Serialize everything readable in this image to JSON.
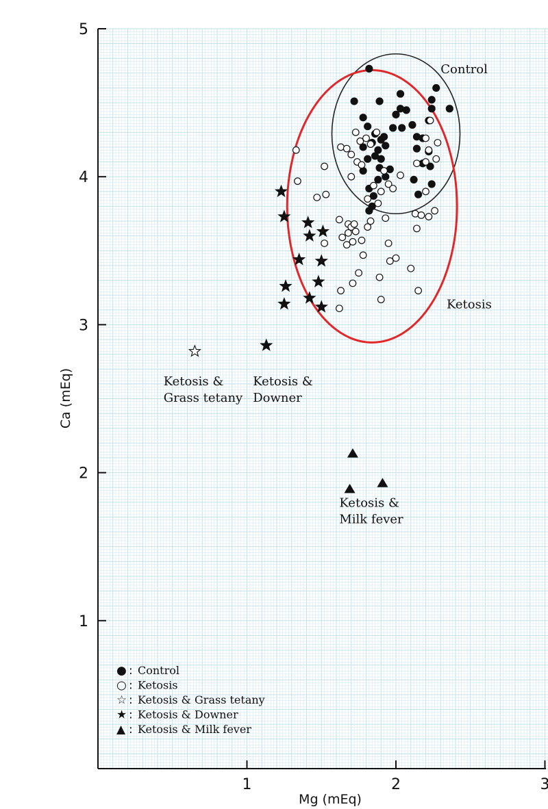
{
  "chart_data": {
    "type": "scatter",
    "title": "",
    "xlabel": "Mg (mEq)",
    "ylabel": "Ca (mEq)",
    "xlim": [
      0,
      3
    ],
    "ylim": [
      0,
      5
    ],
    "x_ticks": [
      1,
      2,
      3
    ],
    "y_ticks": [
      1,
      2,
      3,
      4,
      5
    ],
    "grid": true,
    "legend_position": "bottom-left",
    "series": [
      {
        "name": "Control",
        "marker": "filled-circle",
        "points": [
          [
            1.82,
            4.73
          ],
          [
            2.03,
            4.56
          ],
          [
            2.27,
            4.6
          ],
          [
            2.24,
            4.52
          ],
          [
            1.72,
            4.51
          ],
          [
            1.89,
            4.51
          ],
          [
            2.03,
            4.46
          ],
          [
            2.07,
            4.45
          ],
          [
            2.24,
            4.46
          ],
          [
            2.36,
            4.46
          ],
          [
            1.78,
            4.4
          ],
          [
            2.0,
            4.42
          ],
          [
            2.11,
            4.35
          ],
          [
            2.22,
            4.38
          ],
          [
            1.81,
            4.34
          ],
          [
            1.98,
            4.33
          ],
          [
            2.04,
            4.33
          ],
          [
            1.86,
            4.29
          ],
          [
            1.9,
            4.25
          ],
          [
            1.92,
            4.27
          ],
          [
            2.14,
            4.27
          ],
          [
            2.18,
            4.26
          ],
          [
            1.78,
            4.2
          ],
          [
            1.84,
            4.23
          ],
          [
            1.88,
            4.18
          ],
          [
            1.93,
            4.21
          ],
          [
            2.14,
            4.19
          ],
          [
            2.22,
            4.17
          ],
          [
            1.81,
            4.12
          ],
          [
            1.86,
            4.14
          ],
          [
            1.9,
            4.12
          ],
          [
            2.18,
            4.09
          ],
          [
            1.78,
            4.04
          ],
          [
            1.89,
            4.06
          ],
          [
            1.96,
            4.05
          ],
          [
            2.23,
            4.07
          ],
          [
            1.88,
            3.98
          ],
          [
            1.93,
            4.0
          ],
          [
            2.12,
            3.98
          ],
          [
            2.24,
            3.95
          ],
          [
            1.82,
            3.92
          ],
          [
            1.85,
            3.87
          ],
          [
            2.15,
            3.88
          ],
          [
            1.84,
            3.8
          ],
          [
            1.82,
            3.77
          ]
        ]
      },
      {
        "name": "Ketosis",
        "marker": "open-circle",
        "points": [
          [
            1.33,
            4.18
          ],
          [
            1.34,
            3.97
          ],
          [
            1.52,
            4.07
          ],
          [
            1.47,
            3.86
          ],
          [
            1.53,
            3.88
          ],
          [
            1.63,
            4.2
          ],
          [
            1.73,
            4.3
          ],
          [
            1.67,
            4.19
          ],
          [
            1.7,
            4.15
          ],
          [
            1.74,
            4.1
          ],
          [
            1.77,
            4.08
          ],
          [
            1.7,
            4.0
          ],
          [
            1.76,
            4.24
          ],
          [
            1.8,
            4.26
          ],
          [
            1.83,
            4.22
          ],
          [
            1.87,
            4.3
          ],
          [
            1.92,
            4.04
          ],
          [
            1.95,
            3.95
          ],
          [
            1.98,
            3.92
          ],
          [
            2.03,
            4.01
          ],
          [
            1.85,
            3.94
          ],
          [
            1.9,
            3.9
          ],
          [
            1.81,
            3.85
          ],
          [
            1.88,
            3.82
          ],
          [
            2.2,
            4.26
          ],
          [
            2.23,
            4.38
          ],
          [
            2.27,
            4.12
          ],
          [
            2.28,
            4.23
          ],
          [
            2.22,
            4.18
          ],
          [
            2.2,
            4.1
          ],
          [
            2.14,
            4.09
          ],
          [
            2.2,
            3.9
          ],
          [
            2.13,
            3.75
          ],
          [
            2.17,
            3.74
          ],
          [
            2.22,
            3.73
          ],
          [
            2.26,
            3.77
          ],
          [
            2.14,
            3.65
          ],
          [
            1.83,
            3.7
          ],
          [
            1.81,
            3.66
          ],
          [
            1.93,
            3.72
          ],
          [
            1.62,
            3.71
          ],
          [
            1.68,
            3.68
          ],
          [
            1.7,
            3.66
          ],
          [
            1.72,
            3.68
          ],
          [
            1.73,
            3.63
          ],
          [
            1.64,
            3.59
          ],
          [
            1.68,
            3.62
          ],
          [
            1.71,
            3.56
          ],
          [
            1.67,
            3.54
          ],
          [
            1.77,
            3.57
          ],
          [
            1.52,
            3.55
          ],
          [
            1.78,
            3.47
          ],
          [
            1.95,
            3.55
          ],
          [
            2.0,
            3.45
          ],
          [
            1.96,
            3.43
          ],
          [
            2.1,
            3.38
          ],
          [
            1.75,
            3.35
          ],
          [
            1.89,
            3.32
          ],
          [
            1.71,
            3.28
          ],
          [
            1.63,
            3.23
          ],
          [
            1.9,
            3.17
          ],
          [
            2.15,
            3.23
          ],
          [
            1.62,
            3.11
          ]
        ]
      },
      {
        "name": "Ketosis & Grass tetany",
        "marker": "open-star",
        "points": [
          [
            0.65,
            2.82
          ]
        ]
      },
      {
        "name": "Ketosis & Downer",
        "marker": "filled-star",
        "points": [
          [
            1.23,
            3.9
          ],
          [
            1.25,
            3.73
          ],
          [
            1.41,
            3.69
          ],
          [
            1.51,
            3.63
          ],
          [
            1.42,
            3.6
          ],
          [
            1.35,
            3.44
          ],
          [
            1.5,
            3.43
          ],
          [
            1.26,
            3.26
          ],
          [
            1.48,
            3.29
          ],
          [
            1.25,
            3.14
          ],
          [
            1.42,
            3.18
          ],
          [
            1.5,
            3.12
          ],
          [
            1.13,
            2.86
          ]
        ]
      },
      {
        "name": "Ketosis & Milk fever",
        "marker": "filled-triangle",
        "points": [
          [
            1.71,
            2.13
          ],
          [
            1.69,
            1.89
          ],
          [
            1.91,
            1.93
          ]
        ]
      }
    ],
    "ellipses": [
      {
        "label": "Control",
        "color": "#222222",
        "cx": 2.0,
        "cy": 4.29,
        "rx": 0.43,
        "ry": 0.54
      },
      {
        "label": "Ketosis",
        "color": "#e0282a",
        "cx": 1.84,
        "cy": 3.8,
        "rx": 0.57,
        "ry": 0.92
      }
    ],
    "annotations": [
      {
        "id": "control",
        "text": "Control",
        "x": 2.3,
        "y": 4.7
      },
      {
        "id": "ketosis",
        "text": "Ketosis",
        "x": 2.34,
        "y": 3.11
      },
      {
        "id": "grass",
        "lines": [
          "Ketosis &",
          "Grass tetany"
        ],
        "x": 0.44,
        "y": 2.59
      },
      {
        "id": "downer",
        "lines": [
          "Ketosis &",
          "Downer"
        ],
        "x": 1.04,
        "y": 2.59
      },
      {
        "id": "milk",
        "lines": [
          "Ketosis &",
          "Milk fever"
        ],
        "x": 1.62,
        "y": 1.77
      }
    ],
    "legend": [
      {
        "symbol": "●",
        "text": "Control"
      },
      {
        "symbol": "○",
        "text": "Ketosis"
      },
      {
        "symbol": "☆",
        "text": "Ketosis & Grass tetany"
      },
      {
        "symbol": "★",
        "text": "Ketosis & Downer"
      },
      {
        "symbol": "▲",
        "text": "Ketosis & Milk fever"
      }
    ],
    "colors": {
      "grid": "#cfe7ef",
      "ink": "#111111",
      "ketosis_ellipse": "#e0282a",
      "control_ellipse": "#222222"
    }
  }
}
